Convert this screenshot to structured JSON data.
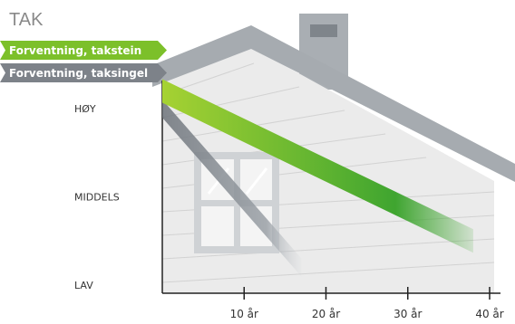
{
  "chart_data": {
    "type": "line",
    "title": "TAK",
    "x": [
      0,
      10,
      20,
      30,
      40
    ],
    "xticks": [
      "10 år",
      "20 år",
      "30 år",
      "40 år"
    ],
    "yticks": [
      "HØY",
      "MIDDELS",
      "LAV"
    ],
    "xlim": [
      0,
      42
    ],
    "ylim": [
      0,
      2
    ],
    "series": [
      {
        "name": "Forventning, takstein",
        "color": "#7cc02a",
        "points": [
          [
            0,
            2.2
          ],
          [
            38,
            0.5
          ]
        ]
      },
      {
        "name": "Forventning, taksingel",
        "color": "#7d8289",
        "points": [
          [
            0,
            2.0
          ],
          [
            17,
            0.2
          ]
        ]
      }
    ]
  }
}
